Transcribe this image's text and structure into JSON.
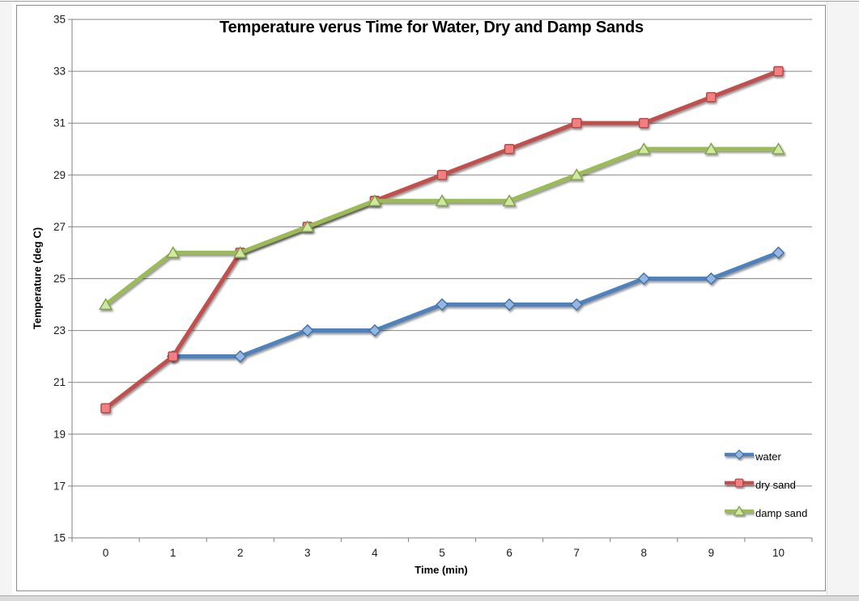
{
  "window": {
    "left_strip_color": "#f4f4f4",
    "right_strip_color": "#f4f4f4",
    "bottom_strip_color": "#dbdbdb",
    "chart_border_color": "#8c8c8c"
  },
  "chart_data": {
    "type": "line",
    "title": "Temperature verus Time for Water, Dry and Damp Sands",
    "xlabel": "Time (min)",
    "ylabel": "Temperature (deg C)",
    "x": [
      0,
      1,
      2,
      3,
      4,
      5,
      6,
      7,
      8,
      9,
      10
    ],
    "x_tick_labels": [
      "0",
      "1",
      "2",
      "3",
      "4",
      "5",
      "6",
      "7",
      "8",
      "9",
      "10"
    ],
    "ylim": [
      15,
      35
    ],
    "y_ticks": [
      15,
      17,
      19,
      21,
      23,
      25,
      27,
      29,
      31,
      33,
      35
    ],
    "grid": true,
    "gridline_color": "#878787",
    "axis_color": "#808080",
    "legend_position": "inside-right",
    "series": [
      {
        "name": "water",
        "marker": "diamond",
        "line_color": "#4F81BD",
        "marker_fill": "#92B7E2",
        "marker_border": "#4470A0",
        "values": [
          null,
          22,
          22,
          23,
          23,
          24,
          24,
          24,
          25,
          25,
          26
        ]
      },
      {
        "name": "dry sand",
        "marker": "square",
        "line_color": "#C0504D",
        "marker_fill": "#F28082",
        "marker_border": "#B04543",
        "values": [
          20,
          22,
          26,
          27,
          28,
          29,
          30,
          31,
          31,
          32,
          33
        ]
      },
      {
        "name": "damp sand",
        "marker": "triangle",
        "line_color": "#9BBB59",
        "marker_fill": "#CFE9A2",
        "marker_border": "#81A048",
        "values": [
          24,
          26,
          26,
          27,
          28,
          28,
          28,
          29,
          30,
          30,
          30
        ]
      }
    ]
  }
}
